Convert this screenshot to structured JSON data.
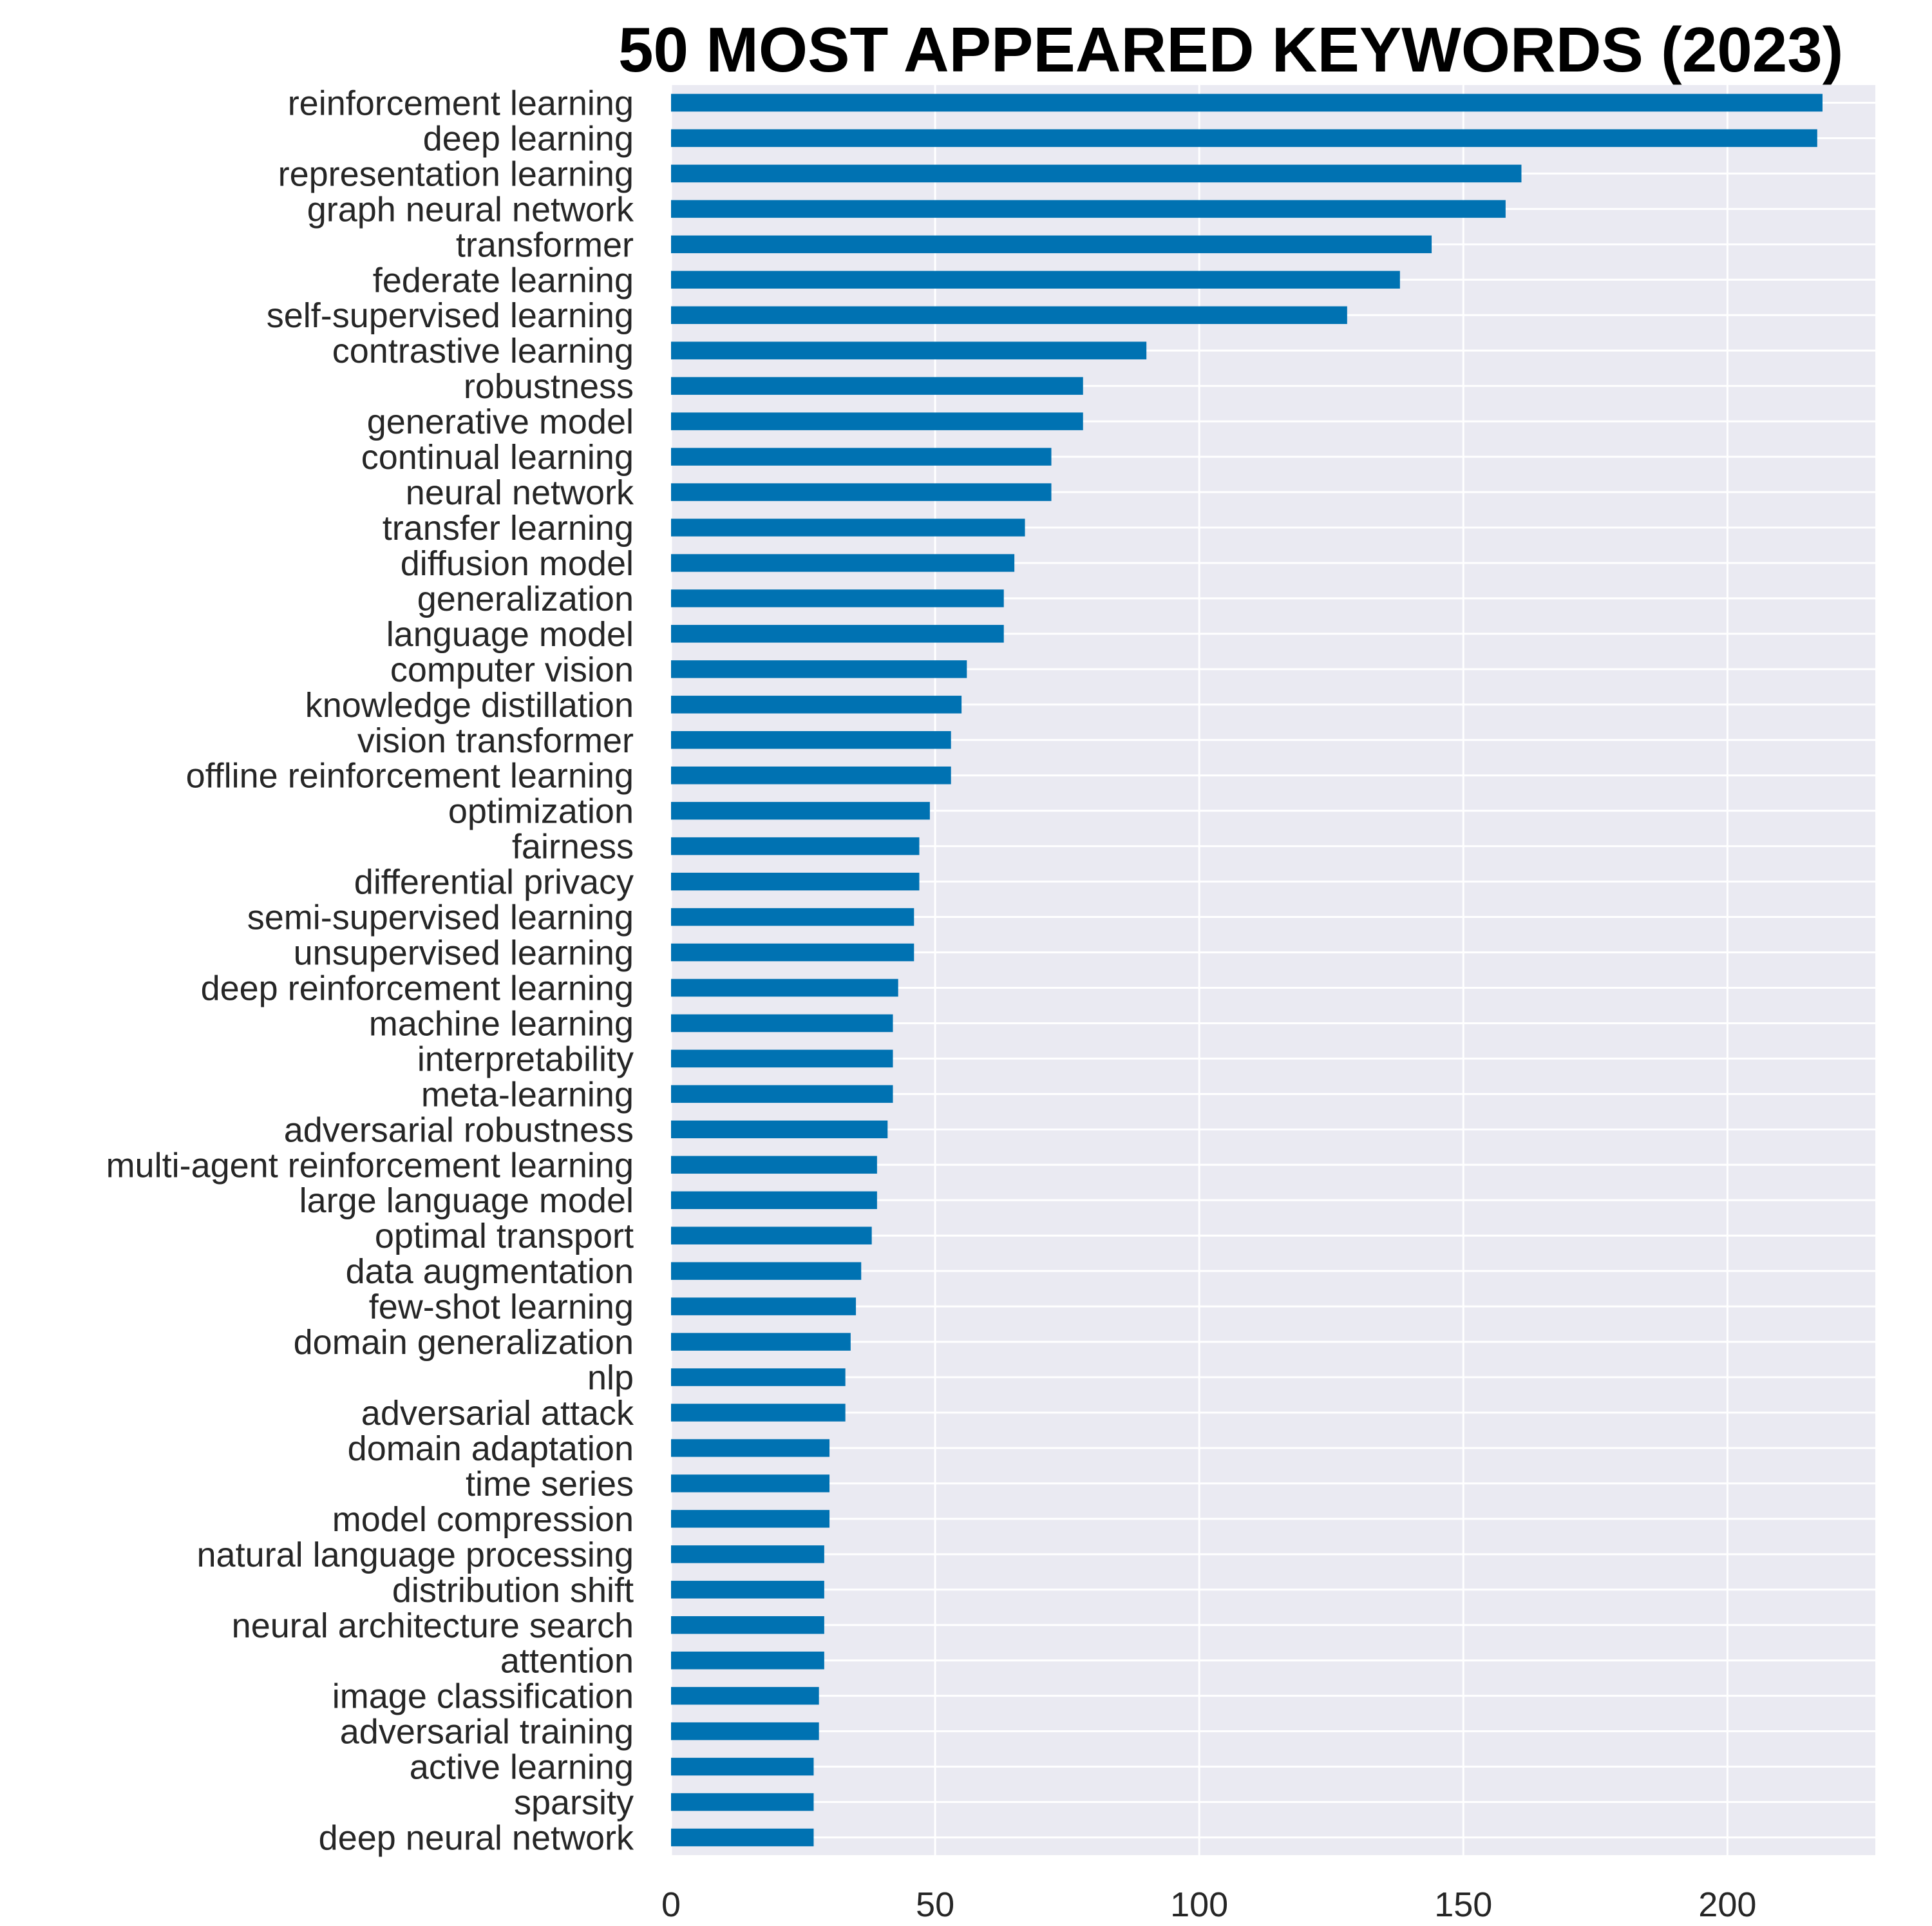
{
  "chart_data": {
    "type": "bar",
    "orientation": "horizontal",
    "title": "50 MOST APPEARED KEYWORDS (2023)",
    "xlabel": "",
    "ylabel": "",
    "xlim": [
      0,
      228
    ],
    "xticks": [
      0,
      50,
      100,
      150,
      200
    ],
    "grid": true,
    "bar_color": "#0072b2",
    "background_color": "#eaeaf2",
    "categories": [
      "reinforcement learning",
      "deep learning",
      "representation learning",
      "graph neural network",
      "transformer",
      "federate learning",
      "self-supervised learning",
      "contrastive learning",
      "robustness",
      "generative model",
      "continual learning",
      "neural network",
      "transfer learning",
      "diffusion model",
      "generalization",
      "language model",
      "computer vision",
      "knowledge distillation",
      "vision transformer",
      "offline reinforcement learning",
      "optimization",
      "fairness",
      "differential privacy",
      "semi-supervised learning",
      "unsupervised learning",
      "deep reinforcement learning",
      "machine learning",
      "interpretability",
      "meta-learning",
      "adversarial robustness",
      "multi-agent reinforcement learning",
      "large language model",
      "optimal transport",
      "data augmentation",
      "few-shot learning",
      "domain generalization",
      "nlp",
      "adversarial attack",
      "domain adaptation",
      "time series",
      "model compression",
      "natural language processing",
      "distribution shift",
      "neural architecture search",
      "attention",
      "image classification",
      "adversarial training",
      "active learning",
      "sparsity",
      "deep neural network"
    ],
    "values": [
      218,
      217,
      161,
      158,
      144,
      138,
      128,
      90,
      78,
      78,
      72,
      72,
      67,
      65,
      63,
      63,
      56,
      55,
      53,
      53,
      49,
      47,
      47,
      46,
      46,
      43,
      42,
      42,
      42,
      41,
      39,
      39,
      38,
      36,
      35,
      34,
      33,
      33,
      30,
      30,
      30,
      29,
      29,
      29,
      29,
      28,
      28,
      27,
      27,
      27
    ]
  }
}
